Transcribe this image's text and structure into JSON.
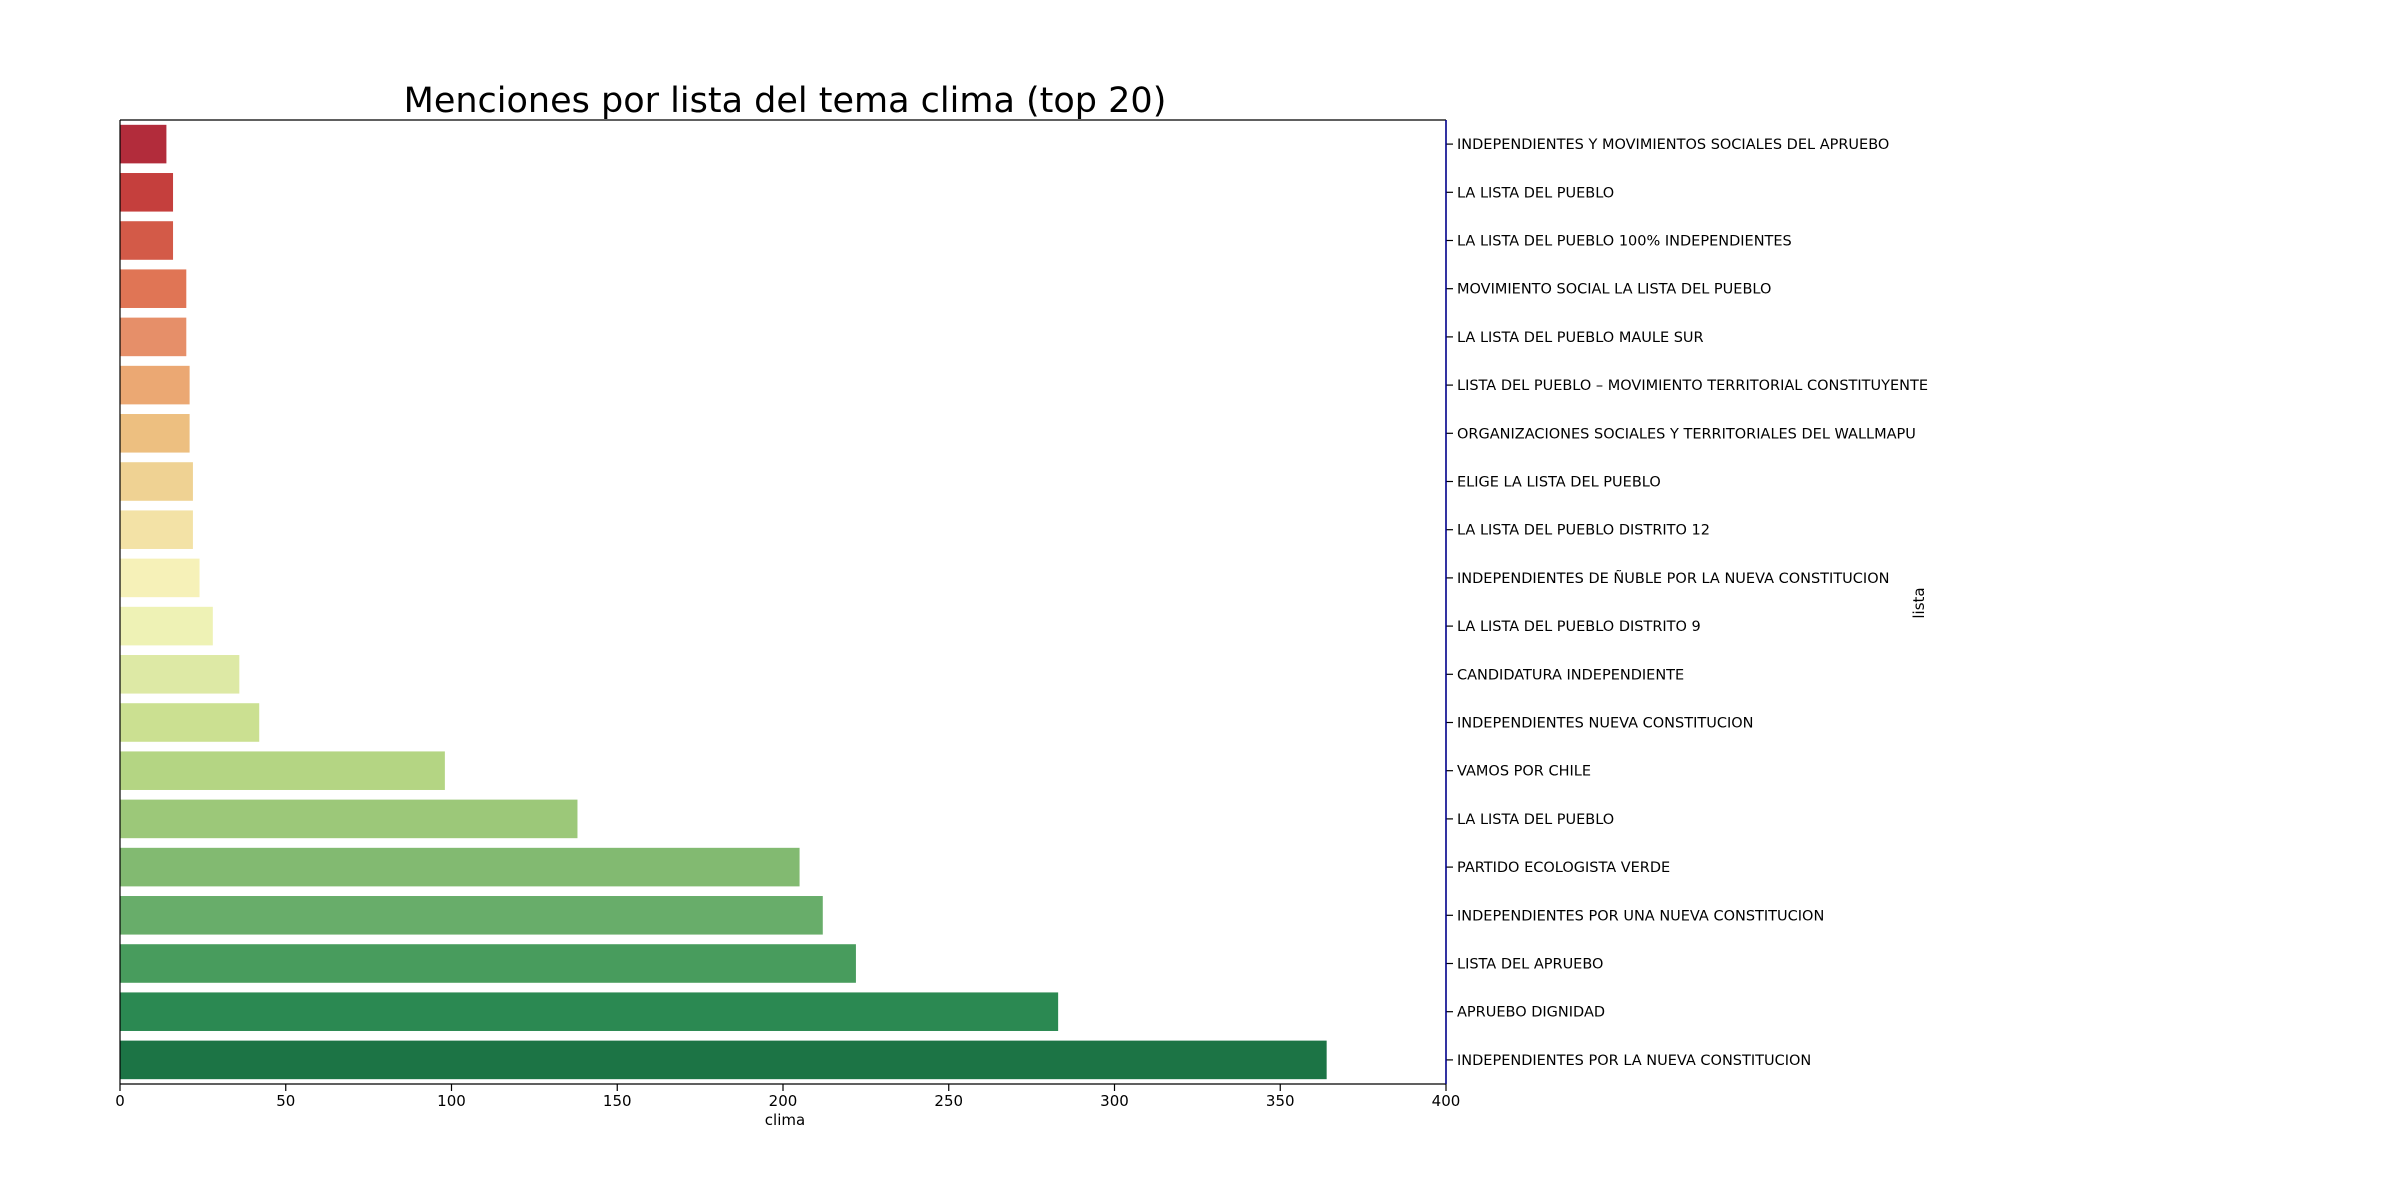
{
  "chart_data": {
    "type": "bar",
    "orientation": "horizontal",
    "title": "Menciones por lista del tema clima (top 20)",
    "xlabel": "clima",
    "ylabel": "lista",
    "xlim": [
      0,
      400
    ],
    "xticks": [
      0,
      50,
      100,
      150,
      200,
      250,
      300,
      350,
      400
    ],
    "grid": false,
    "legend": "none",
    "category_axis_position": "right",
    "categories": [
      "INDEPENDIENTES Y MOVIMIENTOS SOCIALES DEL APRUEBO",
      "LA LISTA DEL PUEBLO",
      "LA LISTA DEL PUEBLO 100% INDEPENDIENTES",
      "MOVIMIENTO SOCIAL LA LISTA DEL PUEBLO",
      "LA LISTA DEL PUEBLO MAULE SUR",
      "LISTA DEL PUEBLO – MOVIMIENTO TERRITORIAL CONSTITUYENTE",
      "ORGANIZACIONES SOCIALES Y TERRITORIALES DEL WALLMAPU",
      "ELIGE LA LISTA DEL PUEBLO",
      "LA LISTA DEL PUEBLO DISTRITO 12",
      "INDEPENDIENTES DE ÑUBLE POR LA NUEVA CONSTITUCION",
      "LA LISTA DEL PUEBLO DISTRITO 9",
      "CANDIDATURA INDEPENDIENTE",
      "INDEPENDIENTES NUEVA CONSTITUCION",
      "VAMOS POR CHILE",
      "LA LISTA DEL PUEBLO",
      "PARTIDO ECOLOGISTA VERDE",
      "INDEPENDIENTES POR UNA NUEVA CONSTITUCION",
      "LISTA DEL APRUEBO",
      "APRUEBO DIGNIDAD",
      "INDEPENDIENTES POR LA NUEVA CONSTITUCION"
    ],
    "values": [
      14,
      16,
      16,
      20,
      20,
      21,
      21,
      22,
      22,
      24,
      28,
      36,
      42,
      98,
      138,
      205,
      212,
      222,
      283,
      364
    ],
    "colors": [
      "#b22c3b",
      "#c53f3d",
      "#d35a48",
      "#e07555",
      "#e68f69",
      "#eba873",
      "#edbf80",
      "#efd293",
      "#f3e2a6",
      "#f6f1b8",
      "#eef2b5",
      "#dde9a5",
      "#cbe091",
      "#b4d583",
      "#9cc879",
      "#82ba71",
      "#68ad6a",
      "#489c5d",
      "#2b8952",
      "#1c7445"
    ],
    "axis_color": "#000000",
    "right_spine_color": "#00008b"
  }
}
